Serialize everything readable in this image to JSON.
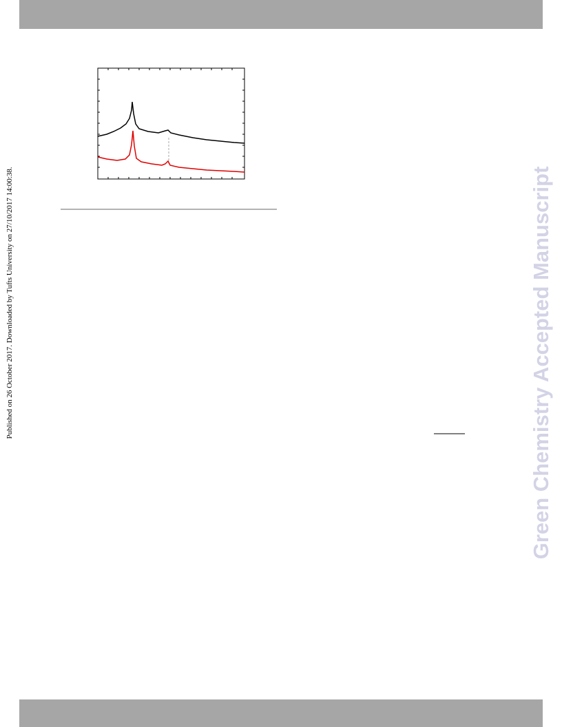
{
  "sidebar": {
    "text": "Published on 26 October 2017. Downloaded by Tufts University on 27/10/2017 14:00:38."
  },
  "watermark": {
    "text": "Green Chemistry Accepted Manuscript"
  }
}
